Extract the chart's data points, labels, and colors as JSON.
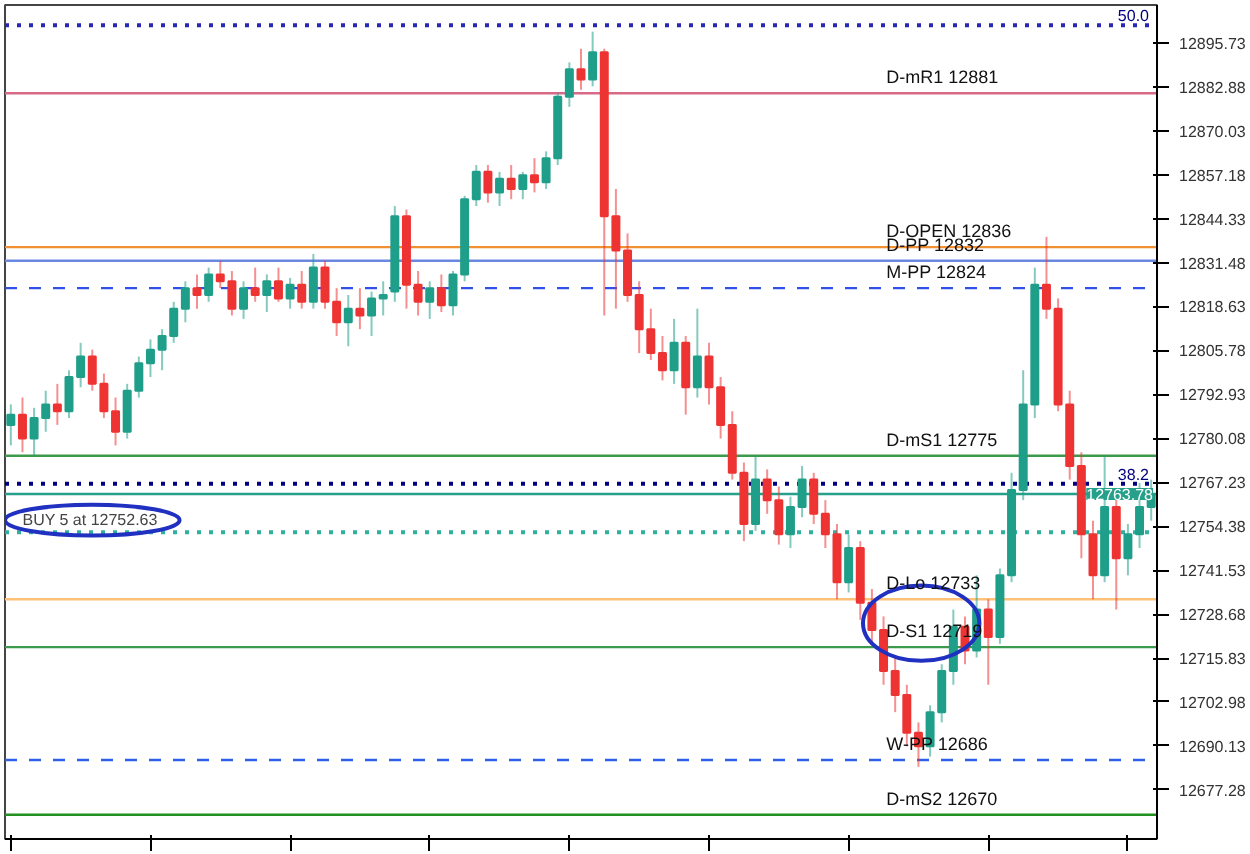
{
  "chart_data": {
    "type": "candlestick",
    "categories": [
      null,
      null,
      null,
      null,
      null,
      null,
      null,
      null,
      null,
      null,
      null,
      null,
      null,
      null,
      null,
      null,
      null,
      null,
      null,
      null,
      null,
      null,
      null,
      null,
      null,
      null,
      null,
      null,
      null,
      null,
      null,
      null,
      null,
      null,
      null,
      null,
      null,
      null,
      null,
      null,
      null,
      null,
      null,
      null,
      null,
      null,
      null,
      null,
      null,
      null,
      null,
      null,
      null,
      null,
      null,
      null,
      null,
      null,
      null,
      null,
      null,
      null,
      null,
      null,
      null,
      null,
      null,
      null,
      null,
      null,
      null,
      null,
      null,
      null,
      null,
      null,
      null,
      null,
      null,
      null,
      null,
      null,
      null,
      null,
      null,
      null,
      null,
      null,
      null,
      null,
      null,
      null,
      null,
      null,
      null,
      null,
      null,
      null,
      null
    ],
    "ohlc": [
      [
        12784,
        12790,
        12778,
        12787
      ],
      [
        12787,
        12792,
        12776,
        12780
      ],
      [
        12780,
        12789,
        12775,
        12786
      ],
      [
        12786,
        12794,
        12782,
        12790
      ],
      [
        12790,
        12796,
        12784,
        12788
      ],
      [
        12788,
        12800,
        12786,
        12798
      ],
      [
        12798,
        12808,
        12795,
        12804
      ],
      [
        12804,
        12806,
        12794,
        12796
      ],
      [
        12796,
        12799,
        12786,
        12788
      ],
      [
        12788,
        12792,
        12778,
        12782
      ],
      [
        12782,
        12796,
        12780,
        12794
      ],
      [
        12794,
        12804,
        12792,
        12802
      ],
      [
        12802,
        12809,
        12798,
        12806
      ],
      [
        12806,
        12812,
        12800,
        12810
      ],
      [
        12810,
        12820,
        12808,
        12818
      ],
      [
        12818,
        12826,
        12814,
        12824
      ],
      [
        12824,
        12828,
        12818,
        12822
      ],
      [
        12822,
        12830,
        12820,
        12828
      ],
      [
        12828,
        12832,
        12824,
        12826
      ],
      [
        12826,
        12829,
        12816,
        12818
      ],
      [
        12818,
        12826,
        12815,
        12824
      ],
      [
        12824,
        12830,
        12820,
        12822
      ],
      [
        12822,
        12828,
        12817,
        12826
      ],
      [
        12826,
        12830,
        12820,
        12821
      ],
      [
        12821,
        12827,
        12818,
        12825
      ],
      [
        12825,
        12829,
        12818,
        12820
      ],
      [
        12820,
        12834,
        12818,
        12830
      ],
      [
        12830,
        12832,
        12818,
        12820
      ],
      [
        12820,
        12824,
        12810,
        12814
      ],
      [
        12814,
        12822,
        12807,
        12818
      ],
      [
        12818,
        12824,
        12812,
        12816
      ],
      [
        12816,
        12823,
        12810,
        12821
      ],
      [
        12821,
        12826,
        12816,
        12822
      ],
      [
        12823,
        12848,
        12820,
        12845
      ],
      [
        12845,
        12847,
        12818,
        12825
      ],
      [
        12825,
        12829,
        12816,
        12820
      ],
      [
        12820,
        12826,
        12815,
        12824
      ],
      [
        12824,
        12828,
        12817,
        12819
      ],
      [
        12819,
        12829,
        12816,
        12828
      ],
      [
        12828,
        12851,
        12826,
        12850
      ],
      [
        12850,
        12860,
        12848,
        12858
      ],
      [
        12858,
        12860,
        12849,
        12852
      ],
      [
        12852,
        12858,
        12848,
        12856
      ],
      [
        12856,
        12860,
        12850,
        12853
      ],
      [
        12853,
        12858,
        12850,
        12857
      ],
      [
        12857,
        12862,
        12852,
        12855
      ],
      [
        12855,
        12864,
        12853,
        12862
      ],
      [
        12862,
        12881,
        12860,
        12880
      ],
      [
        12880,
        12890,
        12877,
        12888
      ],
      [
        12888,
        12894,
        12882,
        12885
      ],
      [
        12885,
        12899,
        12883,
        12893
      ],
      [
        12893,
        12894,
        12816,
        12845
      ],
      [
        12845,
        12853,
        12818,
        12835
      ],
      [
        12835,
        12840,
        12820,
        12822
      ],
      [
        12822,
        12826,
        12805,
        12812
      ],
      [
        12812,
        12818,
        12803,
        12805
      ],
      [
        12805,
        12810,
        12797,
        12800
      ],
      [
        12800,
        12815,
        12796,
        12808
      ],
      [
        12808,
        12810,
        12787,
        12795
      ],
      [
        12795,
        12818,
        12792,
        12804
      ],
      [
        12804,
        12808,
        12790,
        12795
      ],
      [
        12795,
        12798,
        12780,
        12784
      ],
      [
        12784,
        12788,
        12768,
        12770
      ],
      [
        12770,
        12773,
        12750,
        12755
      ],
      [
        12755,
        12775,
        12753,
        12768
      ],
      [
        12768,
        12771,
        12758,
        12762
      ],
      [
        12762,
        12766,
        12749,
        12752
      ],
      [
        12752,
        12763,
        12748,
        12760
      ],
      [
        12760,
        12772,
        12757,
        12768
      ],
      [
        12768,
        12770,
        12755,
        12758
      ],
      [
        12758,
        12762,
        12748,
        12752
      ],
      [
        12752,
        12755,
        12733,
        12738
      ],
      [
        12738,
        12752,
        12735,
        12748
      ],
      [
        12748,
        12750,
        12727,
        12732
      ],
      [
        12732,
        12736,
        12720,
        12724
      ],
      [
        12724,
        12728,
        12708,
        12712
      ],
      [
        12712,
        12716,
        12700,
        12705
      ],
      [
        12705,
        12708,
        12690,
        12694
      ],
      [
        12694,
        12697,
        12684,
        12690
      ],
      [
        12690,
        12702,
        12687,
        12700
      ],
      [
        12700,
        12714,
        12697,
        12712
      ],
      [
        12712,
        12730,
        12708,
        12725
      ],
      [
        12725,
        12728,
        12714,
        12718
      ],
      [
        12718,
        12740,
        12716,
        12730
      ],
      [
        12730,
        12733,
        12708,
        12722
      ],
      [
        12722,
        12742,
        12720,
        12740
      ],
      [
        12740,
        12770,
        12738,
        12765
      ],
      [
        12765,
        12800,
        12762,
        12790
      ],
      [
        12790,
        12830,
        12786,
        12825
      ],
      [
        12825,
        12839,
        12815,
        12818
      ],
      [
        12818,
        12821,
        12788,
        12790
      ],
      [
        12790,
        12794,
        12768,
        12772
      ],
      [
        12772,
        12776,
        12745,
        12752
      ],
      [
        12752,
        12756,
        12733,
        12740
      ],
      [
        12740,
        12775,
        12738,
        12760
      ],
      [
        12760,
        12764,
        12730,
        12745
      ],
      [
        12745,
        12755,
        12740,
        12752
      ],
      [
        12752,
        12767,
        12748,
        12760
      ],
      [
        12760,
        12768,
        12756,
        12763.78
      ]
    ],
    "ylim": [
      12662.9,
      12906.8
    ],
    "yticks": [
      12895.73,
      12882.88,
      12870.03,
      12857.18,
      12844.33,
      12831.48,
      12818.63,
      12805.78,
      12792.93,
      12780.08,
      12767.23,
      12754.38,
      12741.53,
      12728.68,
      12715.83,
      12702.98,
      12690.13,
      12677.28
    ],
    "tick_labels": "y",
    "grid": false,
    "ref_lines": [
      {
        "axis": "y",
        "value": 12900.9,
        "label": null,
        "color": "#2828b0",
        "line_style": "dotted"
      },
      {
        "axis": "y",
        "value": 12881,
        "label": "D-mR1 12881",
        "color": "#d86a88",
        "line_style": "solid"
      },
      {
        "axis": "y",
        "value": 12836,
        "label": "D-OPEN 12836",
        "color": "#f09030",
        "line_style": "solid"
      },
      {
        "axis": "y",
        "value": 12832,
        "label": "D-PP 12832",
        "color": "#6a88e0",
        "line_style": "solid"
      },
      {
        "axis": "y",
        "value": 12824,
        "label": "M-PP 12824",
        "color": "#3050e8",
        "line_style": "dashed"
      },
      {
        "axis": "y",
        "value": 12775,
        "label": "D-mS1 12775",
        "color": "#3c9a4c",
        "line_style": "solid"
      },
      {
        "axis": "y",
        "value": 12766.8,
        "label": null,
        "color": "#000080",
        "line_style": "dotted"
      },
      {
        "axis": "y",
        "value": 12763.78,
        "label": null,
        "color": "#26a08a",
        "line_style": "solid"
      },
      {
        "axis": "y",
        "value": 12752.63,
        "label": null,
        "color": "#30b0a0",
        "line_style": "dotted"
      },
      {
        "axis": "y",
        "value": 12733,
        "label": "D-Lo 12733",
        "color": "#ffc078",
        "line_style": "solid"
      },
      {
        "axis": "y",
        "value": 12719,
        "label": "D-S1 12719",
        "color": "#3c9a4c",
        "line_style": "solid"
      },
      {
        "axis": "y",
        "value": 12686,
        "label": "W-PP 12686",
        "color": "#3060e8",
        "line_style": "dashed"
      },
      {
        "axis": "y",
        "value": 12670,
        "label": "D-mS2 12670",
        "color": "#209020",
        "line_style": "solid"
      }
    ],
    "annotations": [
      {
        "text": "BUY 5 at 12752.63",
        "y": 12752.63
      },
      {
        "text": "12763.78",
        "y": 12763.78
      },
      {
        "text": "50.0",
        "y": 12900.9
      },
      {
        "text": "38.2",
        "y": 12766.8
      }
    ]
  }
}
